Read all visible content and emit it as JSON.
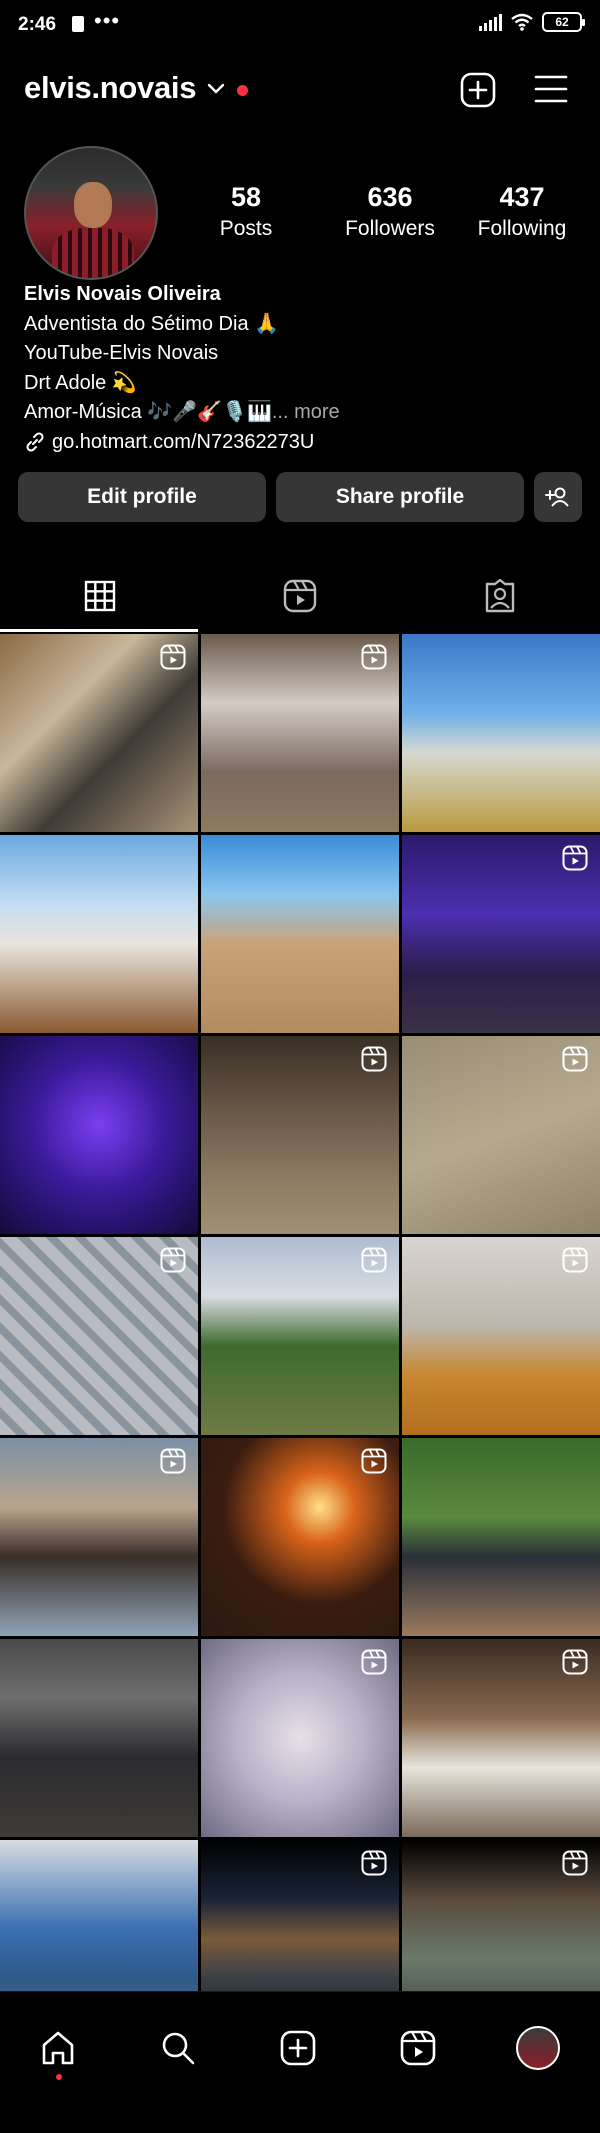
{
  "status_bar": {
    "time": "2:46",
    "more_dots": "•••",
    "battery": "62"
  },
  "header": {
    "username": "elvis.novais",
    "icons": [
      "chevron-down-icon",
      "notification-dot",
      "create-plus-icon",
      "hamburger-menu-icon"
    ],
    "accent_color": "#ff3040"
  },
  "stats": [
    {
      "value": "58",
      "label": "Posts"
    },
    {
      "value": "636",
      "label": "Followers"
    },
    {
      "value": "437",
      "label": "Following"
    }
  ],
  "bio": {
    "name": "Elvis Novais Oliveira",
    "line1": "Adventista do Sétimo Dia 🙏",
    "line2": "YouTube-Elvis Novais",
    "line3": "Drt Adole 💫",
    "line4": "Amor-Música 🎶🎤🎸🎙️🎹",
    "more": "... more",
    "link": "go.hotmart.com/N72362273U"
  },
  "actions": {
    "edit_profile": "Edit profile",
    "share_profile": "Share profile",
    "discover_people_icon": "add-person-icon"
  },
  "tabs": [
    {
      "icon": "grid-icon",
      "active": true
    },
    {
      "icon": "reels-icon",
      "active": false
    },
    {
      "icon": "tagged-icon",
      "active": false
    }
  ],
  "grid": [
    {
      "bg": "linear-gradient(135deg,#8b6a46 0%,#c8b79a 35%,#3e3a35 60%,#a89276 100%)",
      "reel": true
    },
    {
      "bg": "linear-gradient(180deg,#6b5a4b 0%,#d3cbc6 35%,#7a6a5e 70%,#8d7a61 100%)",
      "reel": true
    },
    {
      "bg": "linear-gradient(180deg,#3a78c8 0%,#6fb1e8 40%,#d6d8d0 60%,#b99a3e 100%)",
      "reel": false
    },
    {
      "bg": "linear-gradient(180deg,#6aa9e0 0%,#c3ddf2 35%,#e9e4dd 55%,#8a5a32 100%)",
      "reel": false
    },
    {
      "bg": "linear-gradient(180deg,#3a8ad8 0%,#8bc6ef 30%,#c9a378 55%,#b28b5f 100%)",
      "reel": false
    },
    {
      "bg": "linear-gradient(180deg,#2b1a6b 0%,#4d2fb0 40%,#2a1e4a 70%,#3c3246 100%)",
      "reel": true
    },
    {
      "bg": "radial-gradient(circle at 50% 45%,#7b3ef3 0%,#3a1a99 45%,#130a3a 100%)",
      "reel": false
    },
    {
      "bg": "linear-gradient(180deg,#3a2f26 0%,#6a5a47 40%,#8a7a63 70%,#a28f73 100%)",
      "reel": true
    },
    {
      "bg": "linear-gradient(160deg,#9a8d76 0%,#b5a98f 50%,#8f8268 100%)",
      "reel": true
    },
    {
      "bg": "repeating-linear-gradient(45deg,#b8bcc2 0 12px,#8a949e 12px 20px)",
      "reel": true
    },
    {
      "bg": "linear-gradient(180deg,#aebcd0 0%,#d8dde2 30%,#3e6a2e 55%,#6e7a44 100%)",
      "reel": true
    },
    {
      "bg": "linear-gradient(180deg,#d8d4cf 0%,#bdb6ac 45%,#c8862f 70%,#b2701f 100%)",
      "reel": true
    },
    {
      "bg": "linear-gradient(180deg,#7a8fa6 0%,#b9a48e 35%,#3a2e28 60%,#8fa3b6 100%)",
      "reel": true
    },
    {
      "bg": "radial-gradient(circle at 60% 35%,#ffe08a 0%,#d8641a 20%,#3a1c10 55%,#2a1a12 100%)",
      "reel": true
    },
    {
      "bg": "linear-gradient(180deg,#3a6a2a 0%,#5a8a3e 40%,#2a2f38 60%,#9a7a5e 100%)",
      "reel": false
    },
    {
      "bg": "linear-gradient(180deg,#4a4a4a 0%,#6e6e6e 30%,#2b2b2f 60%,#3e3a36 100%)",
      "reel": false
    },
    {
      "bg": "radial-gradient(circle at 50% 50%,#e8e0e8 0%,#b9b2c8 45%,#6f6a84 100%)",
      "reel": true
    },
    {
      "bg": "linear-gradient(180deg,#3a2a22 0%,#8a6a50 40%,#e8e4dc 65%,#7a6a5a 100%)",
      "reel": true
    },
    {
      "bg": "linear-gradient(180deg,#d6dce2 0%,#3a6fb0 45%,#2d5a8a 70%,#6a6a6a 100%)",
      "reel": false
    },
    {
      "bg": "linear-gradient(180deg,#000 0%,#1a2438 30%,#7a5a3a 50%,#3a3f48 70%,#1a1a1a 100%)",
      "reel": true
    },
    {
      "bg": "linear-gradient(180deg,#000 0%,#5a4a3e 30%,#6a7a6a 60%,#3a3a3a 100%)",
      "reel": true
    }
  ],
  "bottom_nav": [
    {
      "icon": "home-icon",
      "active": true
    },
    {
      "icon": "search-icon",
      "active": false
    },
    {
      "icon": "create-plus-icon",
      "active": false
    },
    {
      "icon": "reels-icon",
      "active": false
    },
    {
      "icon": "profile-avatar",
      "active": false
    }
  ]
}
